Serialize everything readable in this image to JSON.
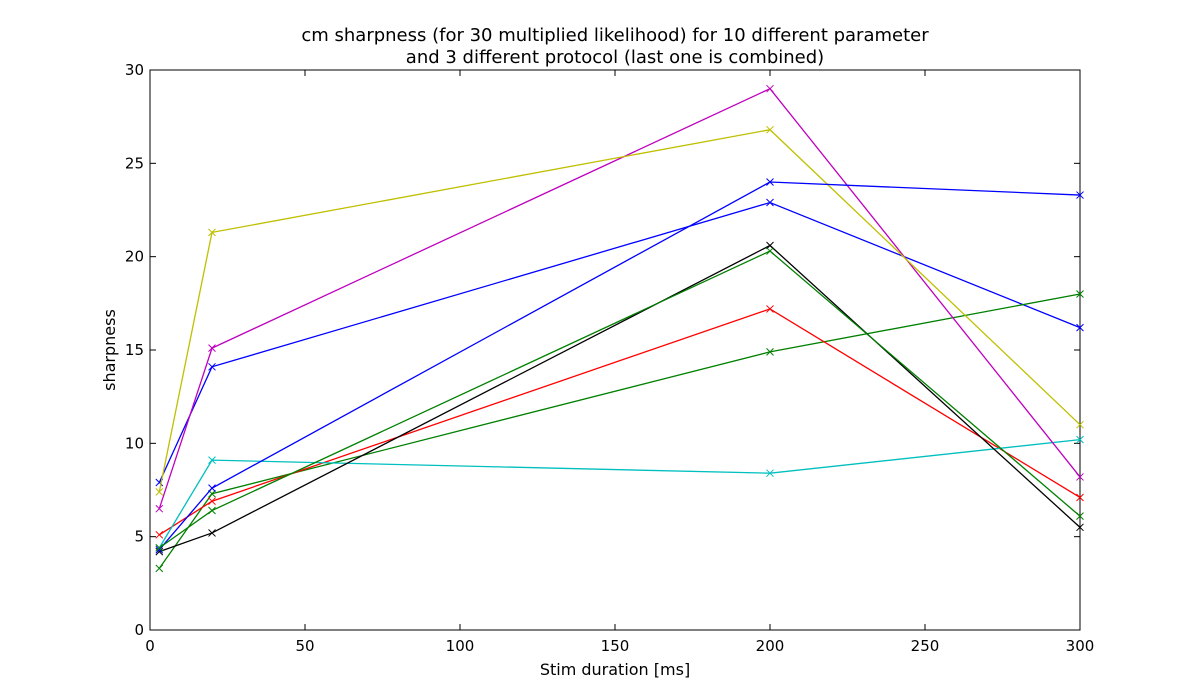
{
  "chart_data": {
    "type": "line",
    "title_line1": "cm sharpness (for 30 multiplied likelihood) for 10 different parameter",
    "title_line2": "and 3 different protocol (last one is combined)",
    "xlabel": "Stim duration [ms]",
    "ylabel": "sharpness",
    "xlim": [
      0,
      300
    ],
    "ylim": [
      0,
      30
    ],
    "x_ticks": [
      "0",
      "50",
      "100",
      "150",
      "200",
      "250",
      "300"
    ],
    "y_ticks": [
      "0",
      "5",
      "10",
      "15",
      "20",
      "25",
      "30"
    ],
    "grid": false,
    "marker": "x",
    "x": [
      3,
      20,
      200,
      300
    ],
    "series": [
      {
        "color": "#0000ff",
        "values": [
          7.9,
          14.1,
          22.9,
          16.2
        ]
      },
      {
        "color": "#008000",
        "values": [
          3.3,
          7.3,
          14.9,
          18.0
        ]
      },
      {
        "color": "#ff0000",
        "values": [
          5.1,
          6.9,
          17.2,
          7.1
        ]
      },
      {
        "color": "#00bfbf",
        "values": [
          4.4,
          9.1,
          8.4,
          10.2
        ]
      },
      {
        "color": "#bf00bf",
        "values": [
          6.5,
          15.1,
          29.0,
          8.2
        ]
      },
      {
        "color": "#bfbf00",
        "values": [
          7.4,
          21.3,
          26.8,
          11.0
        ]
      },
      {
        "color": "#000000",
        "values": [
          4.2,
          5.2,
          20.6,
          5.5
        ]
      },
      {
        "color": "#0000ff",
        "values": [
          4.3,
          7.6,
          24.0,
          23.3
        ]
      },
      {
        "color": "#008000",
        "values": [
          4.4,
          6.4,
          20.3,
          6.1
        ]
      }
    ]
  }
}
